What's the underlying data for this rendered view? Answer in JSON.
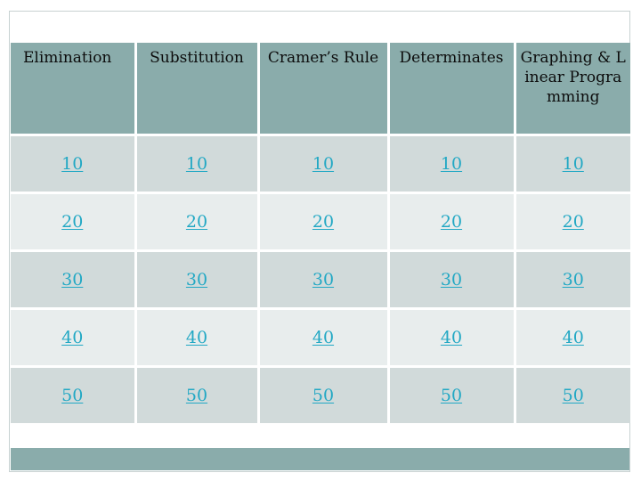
{
  "board": {
    "categories": [
      "Elimination",
      "Substitution",
      "Cramer’s Rule",
      "Determinates",
      "Graphing & Linear Programming"
    ],
    "rows": [
      [
        "10",
        "10",
        "10",
        "10",
        "10"
      ],
      [
        "20",
        "20",
        "20",
        "20",
        "20"
      ],
      [
        "30",
        "30",
        "30",
        "30",
        "30"
      ],
      [
        "40",
        "40",
        "40",
        "40",
        "40"
      ],
      [
        "50",
        "50",
        "50",
        "50",
        "50"
      ]
    ]
  },
  "colors": {
    "header_bg": "#8aacab",
    "row_odd_bg": "#d1dada",
    "row_even_bg": "#e8eded",
    "link": "#22a8c4",
    "footer_bar": "#8aacab"
  }
}
